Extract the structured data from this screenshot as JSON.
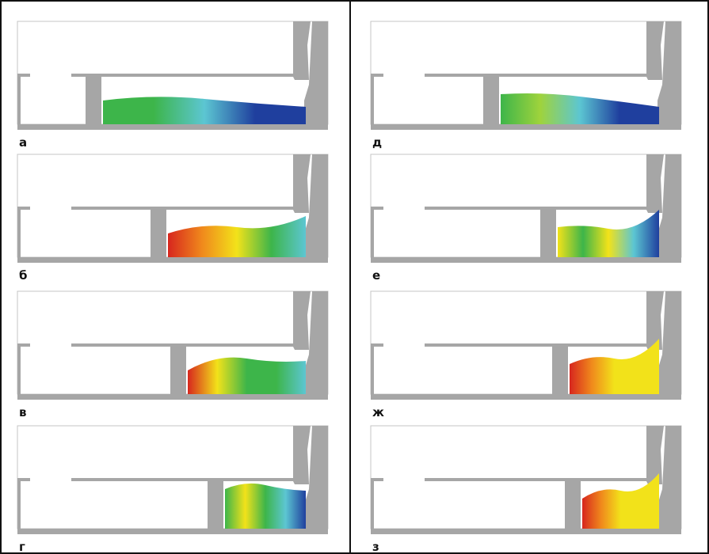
{
  "panels": [
    {
      "label": "а"
    },
    {
      "label": "б"
    },
    {
      "label": "в"
    },
    {
      "label": "г"
    },
    {
      "label": "д"
    },
    {
      "label": "е"
    },
    {
      "label": "ж"
    },
    {
      "label": "з"
    }
  ]
}
